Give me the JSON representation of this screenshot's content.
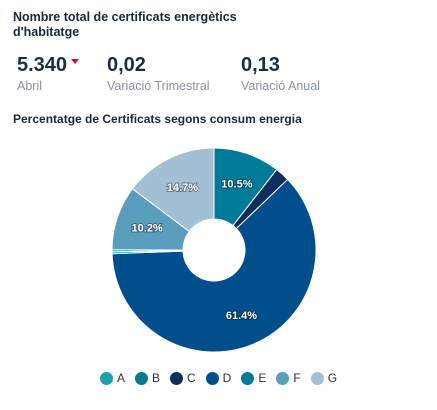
{
  "header": {
    "title": "Nombre total de certificats energètics d'habitatge"
  },
  "kpis": [
    {
      "value": "5.340",
      "label": "Abril",
      "trend_icon": "arrow-down-icon"
    },
    {
      "value": "0,02",
      "label": "Variació Trimestral"
    },
    {
      "value": "0,13",
      "label": "Variació Anual"
    }
  ],
  "chart_data": {
    "type": "pie",
    "title": "Percentatge de Certificats segons consum energia",
    "categories": [
      "A",
      "B",
      "C",
      "D",
      "E",
      "F",
      "G"
    ],
    "values": [
      0.3,
      0.3,
      2.3,
      61.4,
      10.5,
      10.2,
      14.7
    ],
    "labels": [
      "",
      "",
      "",
      "61.4%",
      "10.5%",
      "10.2%",
      "14.7%"
    ],
    "colors": [
      "#1aa3ad",
      "#0a7a8c",
      "#0d2f5e",
      "#004f8c",
      "#007a99",
      "#5b9dbd",
      "#a3bfd3"
    ],
    "legend_position": "bottom",
    "display_order": [
      "E",
      "C",
      "D",
      "A",
      "B",
      "F",
      "G"
    ]
  },
  "colors": {
    "trend_down": "#c8102e",
    "label_text": "#8a949d"
  }
}
